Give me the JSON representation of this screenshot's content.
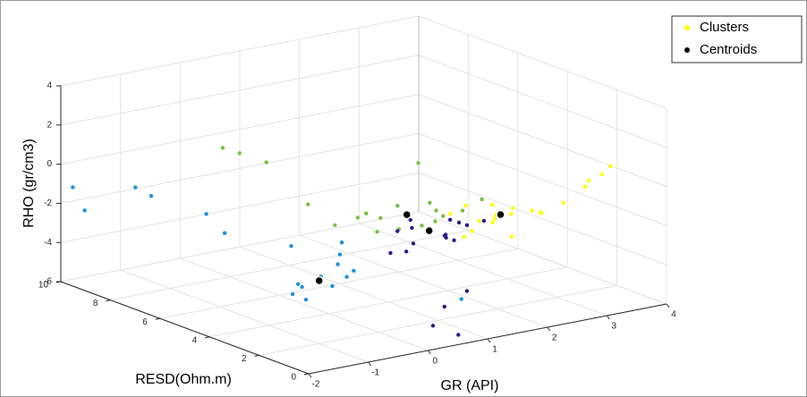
{
  "chart_data": {
    "type": "scatter3d",
    "xlabel": "GR (API)",
    "ylabel": "RESD(Ohm.m)",
    "zlabel": "RHO (gr/cm3)",
    "xlim": [
      -2,
      4
    ],
    "xticks": [
      -2,
      -1,
      0,
      1,
      2,
      3,
      4
    ],
    "ylim": [
      0,
      10
    ],
    "yticks": [
      0,
      2,
      4,
      6,
      8,
      10
    ],
    "zlim": [
      -6,
      4
    ],
    "zticks": [
      -6,
      -4,
      -2,
      0,
      2,
      4
    ],
    "grid": true,
    "legend": "top-right",
    "series": [
      {
        "name": "Clusters",
        "color": "#ffff00",
        "groups": [
          {
            "color": "#ffff00",
            "x": [
              2.8,
              3.0,
              2.6,
              3.2,
              2.5,
              3.4,
              2.9,
              2.7,
              3.1,
              2.4,
              3.6,
              3.3,
              2.2,
              3.0,
              3.8,
              4.0,
              4.1,
              3.9,
              2.6,
              2.9
            ],
            "y": [
              4,
              3.8,
              4.2,
              3.5,
              4.5,
              3.6,
              4.3,
              3.9,
              4.1,
              4.0,
              3.2,
              3.4,
              4.4,
              4.6,
              2.8,
              2.6,
              2.5,
              2.9,
              4.8,
              3.6
            ],
            "z": [
              -2.6,
              -2.3,
              -2.9,
              -2.4,
              -2.2,
              -2.7,
              -3.0,
              -2.0,
              -2.8,
              -3.2,
              -2.1,
              -2.5,
              -2.4,
              -3.4,
              -1.2,
              -0.6,
              -0.2,
              -1.0,
              -4.0,
              -3.6
            ]
          },
          {
            "color": "#77c044",
            "x": [
              1.5,
              1.2,
              1.8,
              0.9,
              2.0,
              1.4,
              1.6,
              1.0,
              2.2,
              1.3,
              0.6,
              1.9,
              1.1,
              1.7,
              0.4,
              0.2,
              0.0,
              -0.2,
              2.4,
              1.5
            ],
            "y": [
              4.4,
              4.8,
              4.0,
              5.0,
              4.2,
              4.6,
              4.1,
              4.9,
              3.9,
              4.3,
              5.2,
              4.5,
              4.7,
              3.8,
              5.8,
              7.0,
              7.6,
              7.8,
              3.6,
              4.0
            ],
            "z": [
              -2.0,
              -2.2,
              -1.8,
              -2.1,
              -2.3,
              -1.6,
              -2.5,
              -1.9,
              -2.0,
              -2.6,
              -2.4,
              -1.7,
              -2.8,
              -2.2,
              -1.5,
              0.2,
              0.5,
              0.8,
              -1.4,
              0.8
            ]
          },
          {
            "color": "#2c1a8c",
            "x": [
              1.8,
              1.6,
              2.0,
              1.5,
              2.2,
              1.9,
              1.4,
              2.1,
              1.7,
              2.4,
              1.3,
              2.0,
              1.8,
              2.6,
              0.8,
              0.5,
              0.9,
              1.9,
              1.2,
              2.1
            ],
            "y": [
              4.3,
              4.5,
              4.1,
              4.2,
              4.4,
              3.9,
              4.6,
              4.0,
              4.8,
              4.2,
              4.0,
              4.7,
              3.6,
              4.0,
              0.7,
              1.0,
              1.5,
              3.0,
              4.4,
              3.8
            ],
            "z": [
              -3,
              -2.8,
              -3.2,
              -3.4,
              -2.7,
              -3.1,
              -2.9,
              -3.5,
              -2.6,
              -3.0,
              -3.6,
              -3.3,
              -3.0,
              -2.8,
              -6,
              -5.5,
              -5,
              -5.5,
              -3.8,
              -2.5
            ]
          },
          {
            "color": "#1b8fe0",
            "x": [
              0,
              -0.2,
              0.3,
              0.2,
              -0.4,
              0.5,
              -0.1,
              0.1,
              0.4,
              -0.3,
              0.6,
              0.8,
              0.2,
              -0.5,
              -0.6,
              -0.9,
              -1.0,
              -1.6,
              -1.8,
              1.6
            ],
            "y": [
              4.4,
              4.6,
              4.0,
              4.8,
              4.5,
              4.2,
              5.0,
              4.1,
              4.6,
              4.2,
              5.0,
              5.4,
              6.0,
              7.0,
              7.5,
              9.0,
              9.4,
              10,
              10,
              2.5
            ],
            "z": [
              -4.5,
              -4.8,
              -4.3,
              -4.6,
              -5.0,
              -4.2,
              -4.9,
              -4.7,
              -4.0,
              -5.2,
              -3.8,
              -3.5,
              -3.6,
              -3.0,
              -2.2,
              -1.8,
              -1.5,
              -2.6,
              -1.3,
              -5.5
            ]
          }
        ]
      },
      {
        "name": "Centroids",
        "color": "#000000",
        "x": [
          2.85,
          1.47,
          1.82,
          0
        ],
        "y": [
          3.93,
          4.39,
          4.33,
          4.39
        ],
        "z": [
          -2.6,
          -2,
          -3,
          -4.5
        ]
      }
    ]
  }
}
